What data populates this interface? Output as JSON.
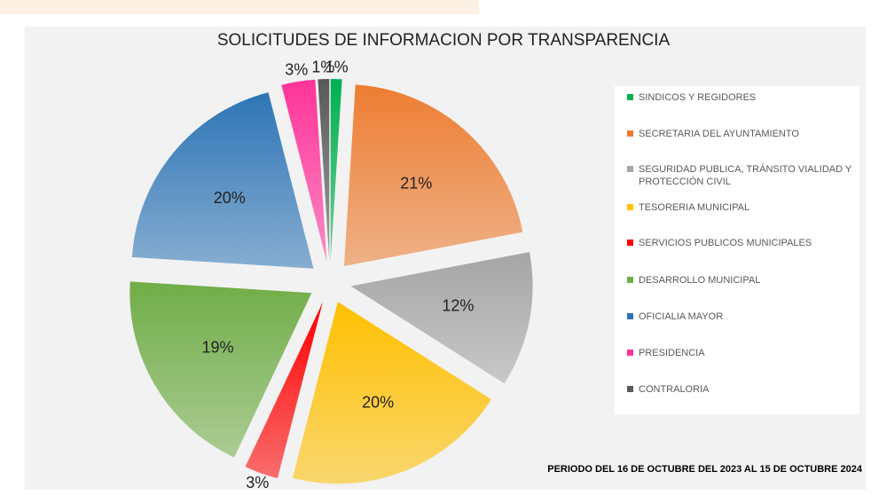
{
  "chart_data": {
    "type": "pie",
    "title": "SOLICITUDES DE INFORMACION POR TRANSPARENCIA",
    "subtitle": "PERIODO DEL 16 DE OCTUBRE DEL 2023 AL 15 DE OCTUBRE 2024",
    "categories": [
      "SINDICOS Y REGIDORES",
      "SECRETARIA DEL AYUNTAMIENTO",
      "SEGURIDAD PUBLICA, TRÁNSITO VIALIDAD Y PROTECCIÓN CIVIL",
      "TESORERIA MUNICIPAL",
      "SERVICIOS PUBLICOS MUNICIPALES",
      "DESARROLLO MUNICIPAL",
      "OFICIALIA MAYOR",
      "PRESIDENCIA",
      "CONTRALORIA"
    ],
    "values": [
      1,
      21,
      12,
      20,
      3,
      19,
      20,
      3,
      1
    ],
    "value_labels": [
      "1%",
      "21%",
      "12%",
      "20%",
      "3%",
      "19%",
      "20%",
      "3%",
      "1%"
    ],
    "colors": [
      "#00b050",
      "#ed7d31",
      "#a5a5a5",
      "#ffc000",
      "#ff0000",
      "#70ad47",
      "#2e75b6",
      "#ff3399",
      "#595959"
    ],
    "legend": "right"
  }
}
